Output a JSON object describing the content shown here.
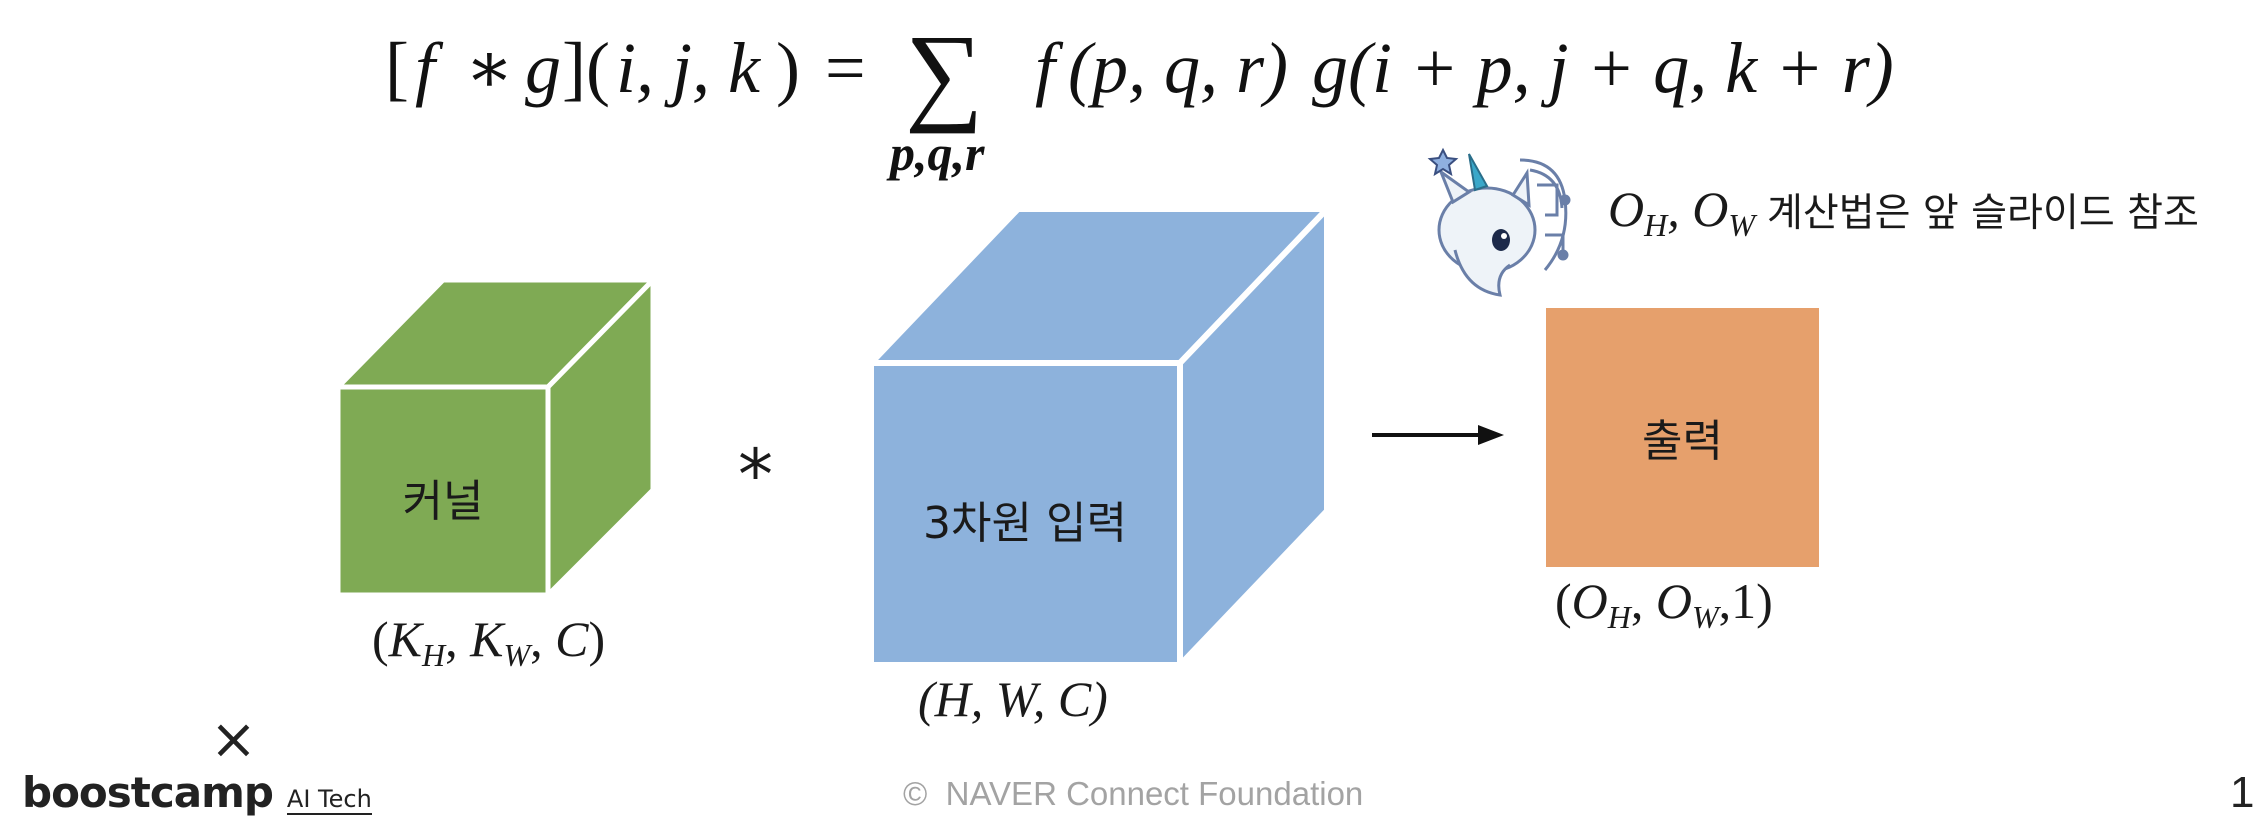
{
  "formula": {
    "lhs_open": "[",
    "lhs_f": "f",
    "lhs_star": "∗",
    "lhs_g": "g",
    "lhs_close": "](",
    "lhs_args": "i, j, k",
    "lhs_end": ")",
    "equals": "=",
    "sum_symbol": "∑",
    "sum_sub": "p,q,r",
    "rhs_f": "f",
    "rhs_f_args": "(p, q, r)",
    "rhs_g": "g",
    "rhs_g_args": "(i + p, j + q, k + r)"
  },
  "note": {
    "symbol_O": "O",
    "sub_H": "H",
    "comma": ", ",
    "sub_W": "W",
    "text": "계산법은 앞 슬라이드 참조"
  },
  "kernel": {
    "label": "커널",
    "dims_open": "(",
    "K": "K",
    "sub_H": "H",
    "sub_W": "W",
    "C": "C",
    "dims_close": ")",
    "color": "#7faa54"
  },
  "conv_operator": "*",
  "input": {
    "label": "3차원 입력",
    "dims": "(H, W, C)",
    "color": "#8db2dc"
  },
  "output": {
    "label": "출력",
    "dims_O": "O",
    "sub_H": "H",
    "sub_W": "W",
    "dims_tail": "1",
    "color": "#e6a06c"
  },
  "footer": {
    "logo_x": "×",
    "logo_main": "boostcamp",
    "logo_sub": "AI Tech",
    "copyright": "©  NAVER Connect Foundation",
    "page_number": "1"
  },
  "icons": {
    "mascot": "unicorn-mascot-icon",
    "arrow": "right-arrow-icon"
  }
}
